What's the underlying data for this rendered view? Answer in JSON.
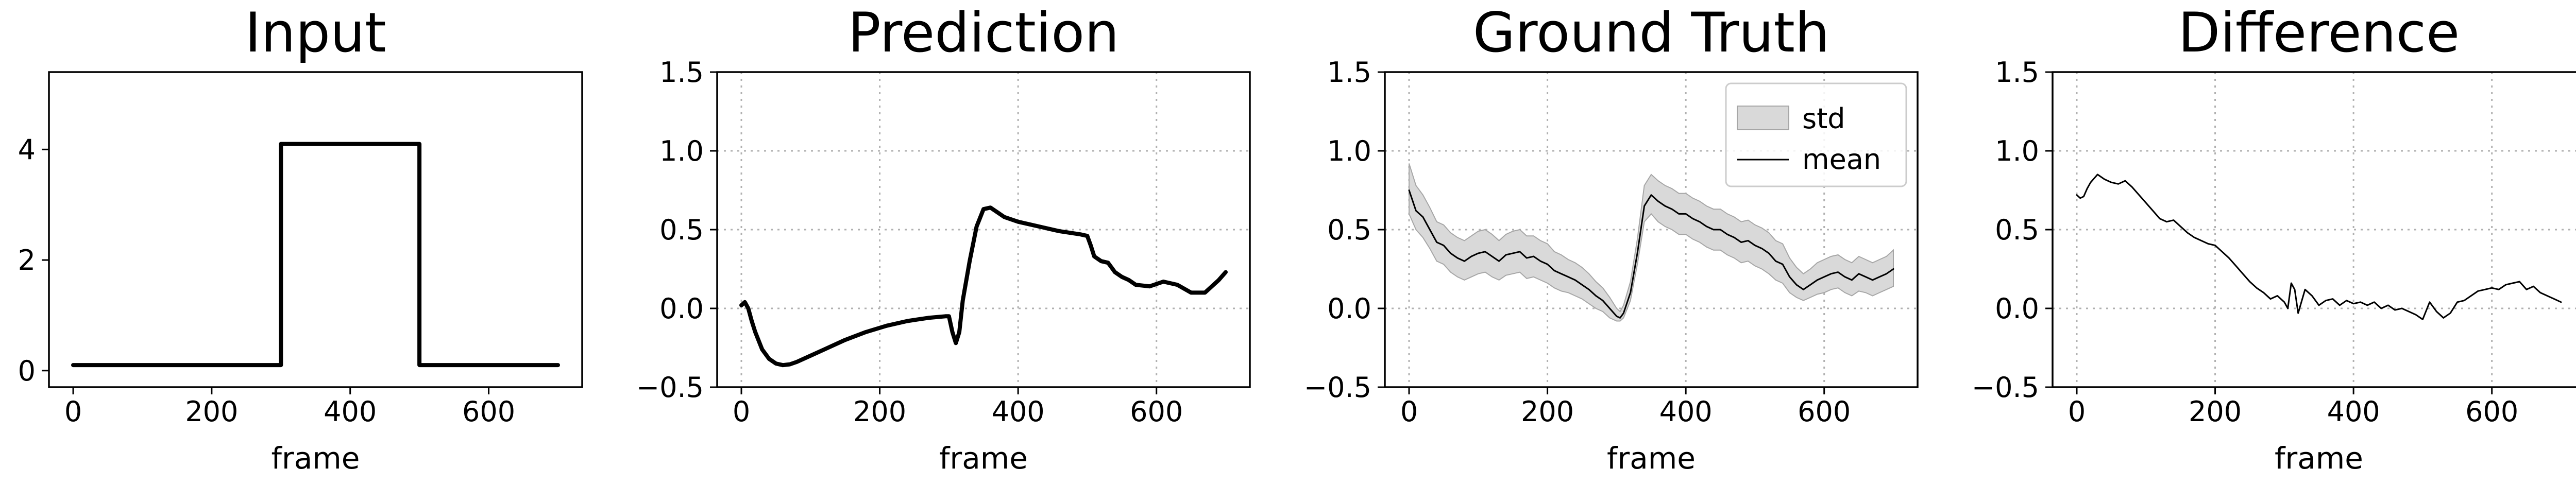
{
  "chart_data": [
    {
      "type": "line",
      "title": "Input",
      "xlabel": "frame",
      "ylabel": "",
      "xlim": [
        -35,
        735
      ],
      "ylim": [
        -0.3,
        5.4
      ],
      "xticks": [
        0,
        200,
        400,
        600
      ],
      "yticks": [
        0,
        2,
        4
      ],
      "grid": false,
      "series": [
        {
          "x": [
            0,
            300,
            300,
            500,
            500,
            700
          ],
          "y": [
            0.1,
            0.1,
            4.1,
            4.1,
            0.1,
            0.1
          ],
          "color": "#000000"
        }
      ]
    },
    {
      "type": "line",
      "title": "Prediction",
      "xlabel": "frame",
      "ylabel": "",
      "xlim": [
        -35,
        735
      ],
      "ylim": [
        -0.5,
        1.5
      ],
      "xticks": [
        0,
        200,
        400,
        600
      ],
      "yticks": [
        -0.5,
        0.0,
        0.5,
        1.0,
        1.5
      ],
      "grid": true,
      "series": [
        {
          "x": [
            0,
            5,
            10,
            15,
            20,
            30,
            40,
            50,
            60,
            70,
            80,
            100,
            120,
            150,
            180,
            210,
            240,
            270,
            295,
            300,
            305,
            310,
            315,
            320,
            330,
            340,
            350,
            360,
            370,
            380,
            400,
            430,
            460,
            490,
            500,
            505,
            510,
            520,
            530,
            540,
            550,
            560,
            570,
            590,
            610,
            630,
            650,
            670,
            690,
            700
          ],
          "y": [
            0.02,
            0.04,
            0.0,
            -0.08,
            -0.15,
            -0.26,
            -0.32,
            -0.35,
            -0.36,
            -0.355,
            -0.34,
            -0.3,
            -0.26,
            -0.2,
            -0.15,
            -0.11,
            -0.08,
            -0.06,
            -0.05,
            -0.05,
            -0.15,
            -0.22,
            -0.15,
            0.05,
            0.3,
            0.52,
            0.63,
            0.64,
            0.61,
            0.58,
            0.55,
            0.52,
            0.49,
            0.47,
            0.46,
            0.4,
            0.33,
            0.3,
            0.29,
            0.23,
            0.2,
            0.18,
            0.15,
            0.14,
            0.17,
            0.15,
            0.1,
            0.1,
            0.18,
            0.23
          ],
          "color": "#000000"
        }
      ]
    },
    {
      "type": "line",
      "title": "Ground Truth",
      "xlabel": "frame",
      "ylabel": "",
      "xlim": [
        -35,
        735
      ],
      "ylim": [
        -0.5,
        1.5
      ],
      "xticks": [
        0,
        200,
        400,
        600
      ],
      "yticks": [
        -0.5,
        0.0,
        0.5,
        1.0,
        1.5
      ],
      "grid": true,
      "legend": {
        "placement": "top-right",
        "entries": [
          "std",
          "mean"
        ]
      },
      "x": [
        0,
        10,
        20,
        30,
        40,
        50,
        60,
        70,
        80,
        90,
        100,
        110,
        120,
        130,
        140,
        150,
        160,
        170,
        180,
        190,
        200,
        210,
        220,
        230,
        240,
        250,
        260,
        270,
        280,
        290,
        300,
        305,
        310,
        320,
        330,
        340,
        350,
        360,
        370,
        380,
        390,
        400,
        410,
        420,
        430,
        440,
        450,
        460,
        470,
        480,
        490,
        500,
        510,
        520,
        530,
        540,
        550,
        560,
        570,
        580,
        590,
        600,
        610,
        620,
        630,
        640,
        650,
        660,
        670,
        680,
        690,
        700
      ],
      "series": [
        {
          "name": "mean",
          "y": [
            0.75,
            0.62,
            0.58,
            0.5,
            0.42,
            0.4,
            0.35,
            0.32,
            0.3,
            0.33,
            0.35,
            0.36,
            0.33,
            0.3,
            0.34,
            0.35,
            0.36,
            0.32,
            0.33,
            0.3,
            0.28,
            0.24,
            0.22,
            0.2,
            0.18,
            0.15,
            0.12,
            0.08,
            0.05,
            0.0,
            -0.05,
            -0.06,
            -0.03,
            0.1,
            0.35,
            0.65,
            0.72,
            0.68,
            0.65,
            0.63,
            0.6,
            0.6,
            0.57,
            0.55,
            0.52,
            0.5,
            0.5,
            0.47,
            0.45,
            0.42,
            0.43,
            0.4,
            0.38,
            0.35,
            0.3,
            0.28,
            0.2,
            0.15,
            0.12,
            0.15,
            0.18,
            0.2,
            0.22,
            0.23,
            0.2,
            0.18,
            0.22,
            0.2,
            0.18,
            0.2,
            0.22,
            0.25
          ],
          "color": "#000000"
        },
        {
          "name": "std",
          "lower": [
            0.6,
            0.5,
            0.45,
            0.38,
            0.3,
            0.28,
            0.23,
            0.2,
            0.18,
            0.2,
            0.22,
            0.23,
            0.2,
            0.18,
            0.21,
            0.22,
            0.23,
            0.19,
            0.2,
            0.18,
            0.16,
            0.13,
            0.11,
            0.1,
            0.08,
            0.06,
            0.03,
            0.0,
            -0.02,
            -0.06,
            -0.08,
            -0.08,
            -0.06,
            0.05,
            0.28,
            0.55,
            0.6,
            0.55,
            0.52,
            0.5,
            0.47,
            0.47,
            0.44,
            0.42,
            0.39,
            0.37,
            0.37,
            0.34,
            0.32,
            0.29,
            0.3,
            0.27,
            0.25,
            0.22,
            0.18,
            0.16,
            0.1,
            0.07,
            0.05,
            0.07,
            0.09,
            0.1,
            0.12,
            0.13,
            0.1,
            0.08,
            0.11,
            0.1,
            0.08,
            0.1,
            0.12,
            0.14
          ],
          "upper": [
            0.92,
            0.78,
            0.72,
            0.64,
            0.55,
            0.53,
            0.48,
            0.45,
            0.43,
            0.46,
            0.49,
            0.5,
            0.47,
            0.43,
            0.47,
            0.49,
            0.5,
            0.46,
            0.46,
            0.43,
            0.41,
            0.36,
            0.34,
            0.31,
            0.29,
            0.26,
            0.22,
            0.17,
            0.13,
            0.07,
            0.0,
            -0.02,
            0.02,
            0.17,
            0.44,
            0.78,
            0.85,
            0.81,
            0.78,
            0.76,
            0.73,
            0.73,
            0.7,
            0.68,
            0.65,
            0.63,
            0.63,
            0.6,
            0.58,
            0.55,
            0.56,
            0.53,
            0.51,
            0.48,
            0.43,
            0.41,
            0.32,
            0.26,
            0.22,
            0.25,
            0.29,
            0.31,
            0.33,
            0.34,
            0.31,
            0.29,
            0.33,
            0.31,
            0.29,
            0.31,
            0.33,
            0.37
          ],
          "color": "#d9d9d9"
        }
      ]
    },
    {
      "type": "line",
      "title": "Difference",
      "xlabel": "frame",
      "ylabel": "",
      "xlim": [
        -35,
        735
      ],
      "ylim": [
        -0.5,
        1.5
      ],
      "xticks": [
        0,
        200,
        400,
        600
      ],
      "yticks": [
        -0.5,
        0.0,
        0.5,
        1.0,
        1.5
      ],
      "grid": true,
      "series": [
        {
          "x": [
            0,
            5,
            10,
            15,
            20,
            30,
            40,
            50,
            60,
            70,
            80,
            90,
            100,
            110,
            120,
            130,
            140,
            150,
            160,
            170,
            180,
            190,
            200,
            210,
            220,
            230,
            240,
            250,
            260,
            270,
            280,
            290,
            300,
            305,
            310,
            315,
            320,
            330,
            340,
            350,
            360,
            370,
            380,
            390,
            400,
            410,
            420,
            430,
            440,
            450,
            460,
            470,
            480,
            490,
            500,
            510,
            520,
            530,
            540,
            550,
            560,
            570,
            580,
            590,
            600,
            610,
            620,
            630,
            640,
            650,
            660,
            670,
            680,
            690,
            700
          ],
          "y": [
            0.72,
            0.7,
            0.71,
            0.76,
            0.8,
            0.85,
            0.82,
            0.8,
            0.79,
            0.81,
            0.77,
            0.72,
            0.67,
            0.62,
            0.57,
            0.55,
            0.56,
            0.52,
            0.48,
            0.45,
            0.43,
            0.41,
            0.4,
            0.36,
            0.32,
            0.27,
            0.22,
            0.17,
            0.13,
            0.1,
            0.06,
            0.08,
            0.04,
            0.0,
            0.16,
            0.12,
            -0.03,
            0.12,
            0.08,
            0.02,
            0.05,
            0.06,
            0.02,
            0.05,
            0.03,
            0.04,
            0.02,
            0.04,
            0.0,
            0.02,
            -0.01,
            0.0,
            -0.02,
            -0.04,
            -0.07,
            0.04,
            -0.02,
            -0.06,
            -0.03,
            0.04,
            0.05,
            0.08,
            0.11,
            0.12,
            0.13,
            0.12,
            0.15,
            0.16,
            0.17,
            0.12,
            0.14,
            0.1,
            0.08,
            0.06,
            0.04
          ],
          "color": "#000000"
        }
      ]
    }
  ]
}
